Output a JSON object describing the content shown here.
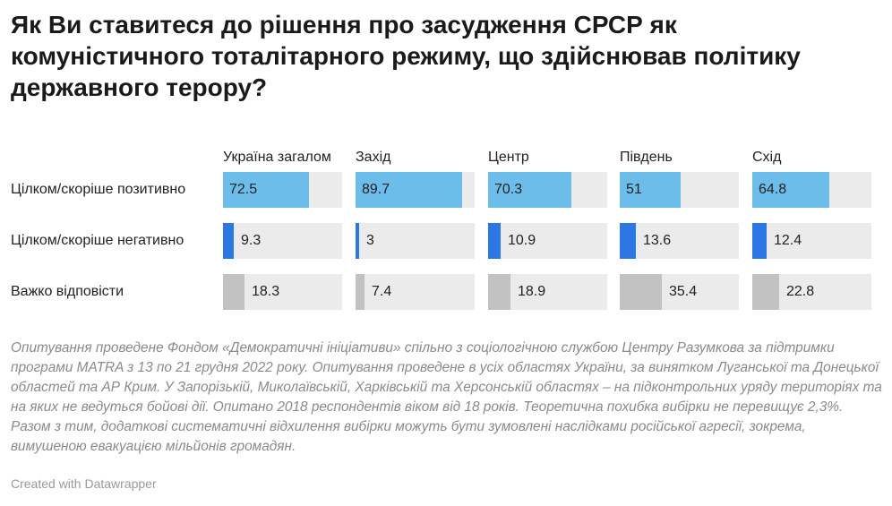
{
  "title": "Як Ви ставитеся до рішення про засудження СРСР як комуністичного тоталітарного режиму, що здійснював політику державного терору?",
  "chart_data": {
    "type": "table",
    "columns": [
      "Україна загалом",
      "Захід",
      "Центр",
      "Південь",
      "Схід"
    ],
    "max_value": 100,
    "rows": [
      {
        "label": "Цілком/скоріше позитивно",
        "values": [
          72.5,
          89.7,
          70.3,
          51,
          64.8
        ],
        "value_labels": [
          "72.5",
          "89.7",
          "70.3",
          "51",
          "64.8"
        ],
        "color": "#6dbdea"
      },
      {
        "label": "Цілком/скоріше негативно",
        "values": [
          9.3,
          3,
          10.9,
          13.6,
          12.4
        ],
        "value_labels": [
          "9.3",
          "3",
          "10.9",
          "13.6",
          "12.4"
        ],
        "color": "#2c77e3"
      },
      {
        "label": "Важко відповісти",
        "values": [
          18.3,
          7.4,
          18.9,
          35.4,
          22.8
        ],
        "value_labels": [
          "18.3",
          "7.4",
          "18.9",
          "35.4",
          "22.8"
        ],
        "color": "#c2c2c2"
      }
    ]
  },
  "note": "Опитування проведене Фондом «Демократичні ініціативи» спільно з соціологічною службою Центру Разумкова за підтримки програми MATRA з 13 по 21 грудня 2022 року. Опитування проведене в усіх областях України, за винятком Луганської та Донецької областей та АР Крим. У Запорізькій, Миколаївській, Харківській та Херсонській областях – на підконтрольних уряду територіях та на яких не ведуться бойові дії. Опитано 2018 респондентів віком від 18 років. Теоретична похибка вибірки не перевищує 2,3%. Разом з тим, додаткові систематичні відхилення вибірки можуть бути зумовлені наслідками російської агресії, зокрема, вимушеною евакуацією мільйонів громадян.",
  "credit": "Created with Datawrapper"
}
